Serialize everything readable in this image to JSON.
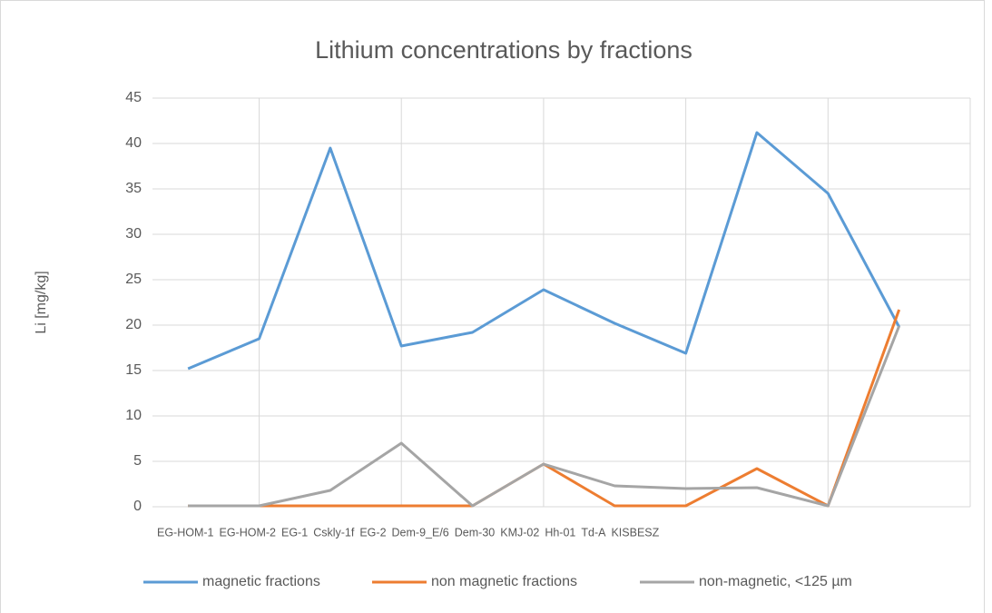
{
  "chart_data": {
    "type": "line",
    "title": "Lithium concentrations by fractions",
    "y_label": "Li [mg/kg]",
    "categories": [
      "EG-HOM-1",
      "EG-HOM-2",
      "EG-1",
      "Cskly-1f",
      "EG-2",
      "Dem-9_E/6",
      "Dem-30",
      "KMJ-02",
      "Hh-01",
      "Td-A",
      "KISBESZ"
    ],
    "series": [
      {
        "name": "magnetic fractions",
        "color": "#5b9bd5",
        "values": [
          15.2,
          18.5,
          39.5,
          17.7,
          19.2,
          23.9,
          20.2,
          16.9,
          41.2,
          34.5,
          19.8
        ]
      },
      {
        "name": "non magnetic fractions",
        "color": "#ed7d31",
        "values": [
          0.1,
          0.1,
          0.1,
          0.1,
          0.1,
          4.7,
          0.1,
          0.1,
          4.2,
          0.1,
          21.7
        ]
      },
      {
        "name": "non-magnetic, <125 µm",
        "color": "#a5a5a5",
        "values": [
          0.1,
          0.1,
          1.8,
          7.0,
          0.1,
          4.7,
          2.3,
          2.0,
          2.1,
          0.1,
          19.9
        ]
      }
    ],
    "ylim": [
      0,
      45
    ],
    "yticks": [
      0,
      5,
      10,
      15,
      20,
      25,
      30,
      35,
      40,
      45
    ],
    "grid": true,
    "legend": "bottom"
  }
}
